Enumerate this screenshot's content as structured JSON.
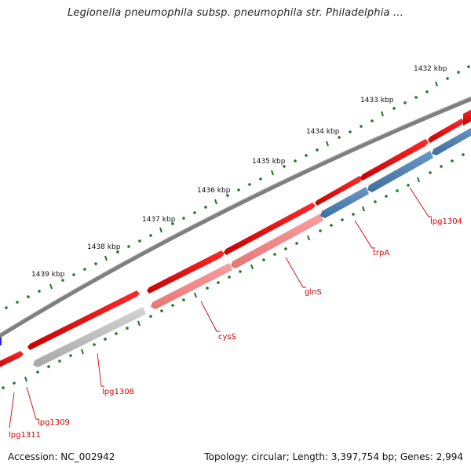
{
  "title": "Legionella pneumophila subsp. pneumophila str. Philadelphia ...",
  "footer": {
    "accession": "Accession: NC_002942",
    "topology": "Topology: circular; Length: 3,397,754 bp; Genes: 2,994"
  },
  "kbp_labels": [
    "1432 kbp",
    "1433 kbp",
    "1434 kbp",
    "1435 kbp",
    "1436 kbp",
    "1437 kbp",
    "1438 kbp",
    "1439 kbp"
  ],
  "gene_labels": [
    "lpg1304",
    "trpA",
    "glnS",
    "cysS",
    "lpg1308",
    "lpg1309",
    "lpg1311"
  ],
  "colors": {
    "backbone": "#7a7a7a",
    "forward_gene": "#ee0000",
    "reverse_red": "#f08080",
    "reverse_blue": "#4d7fb2",
    "reverse_gray": "#c0c0c0",
    "tick": "#1a7a1a",
    "label": "#d40000"
  }
}
